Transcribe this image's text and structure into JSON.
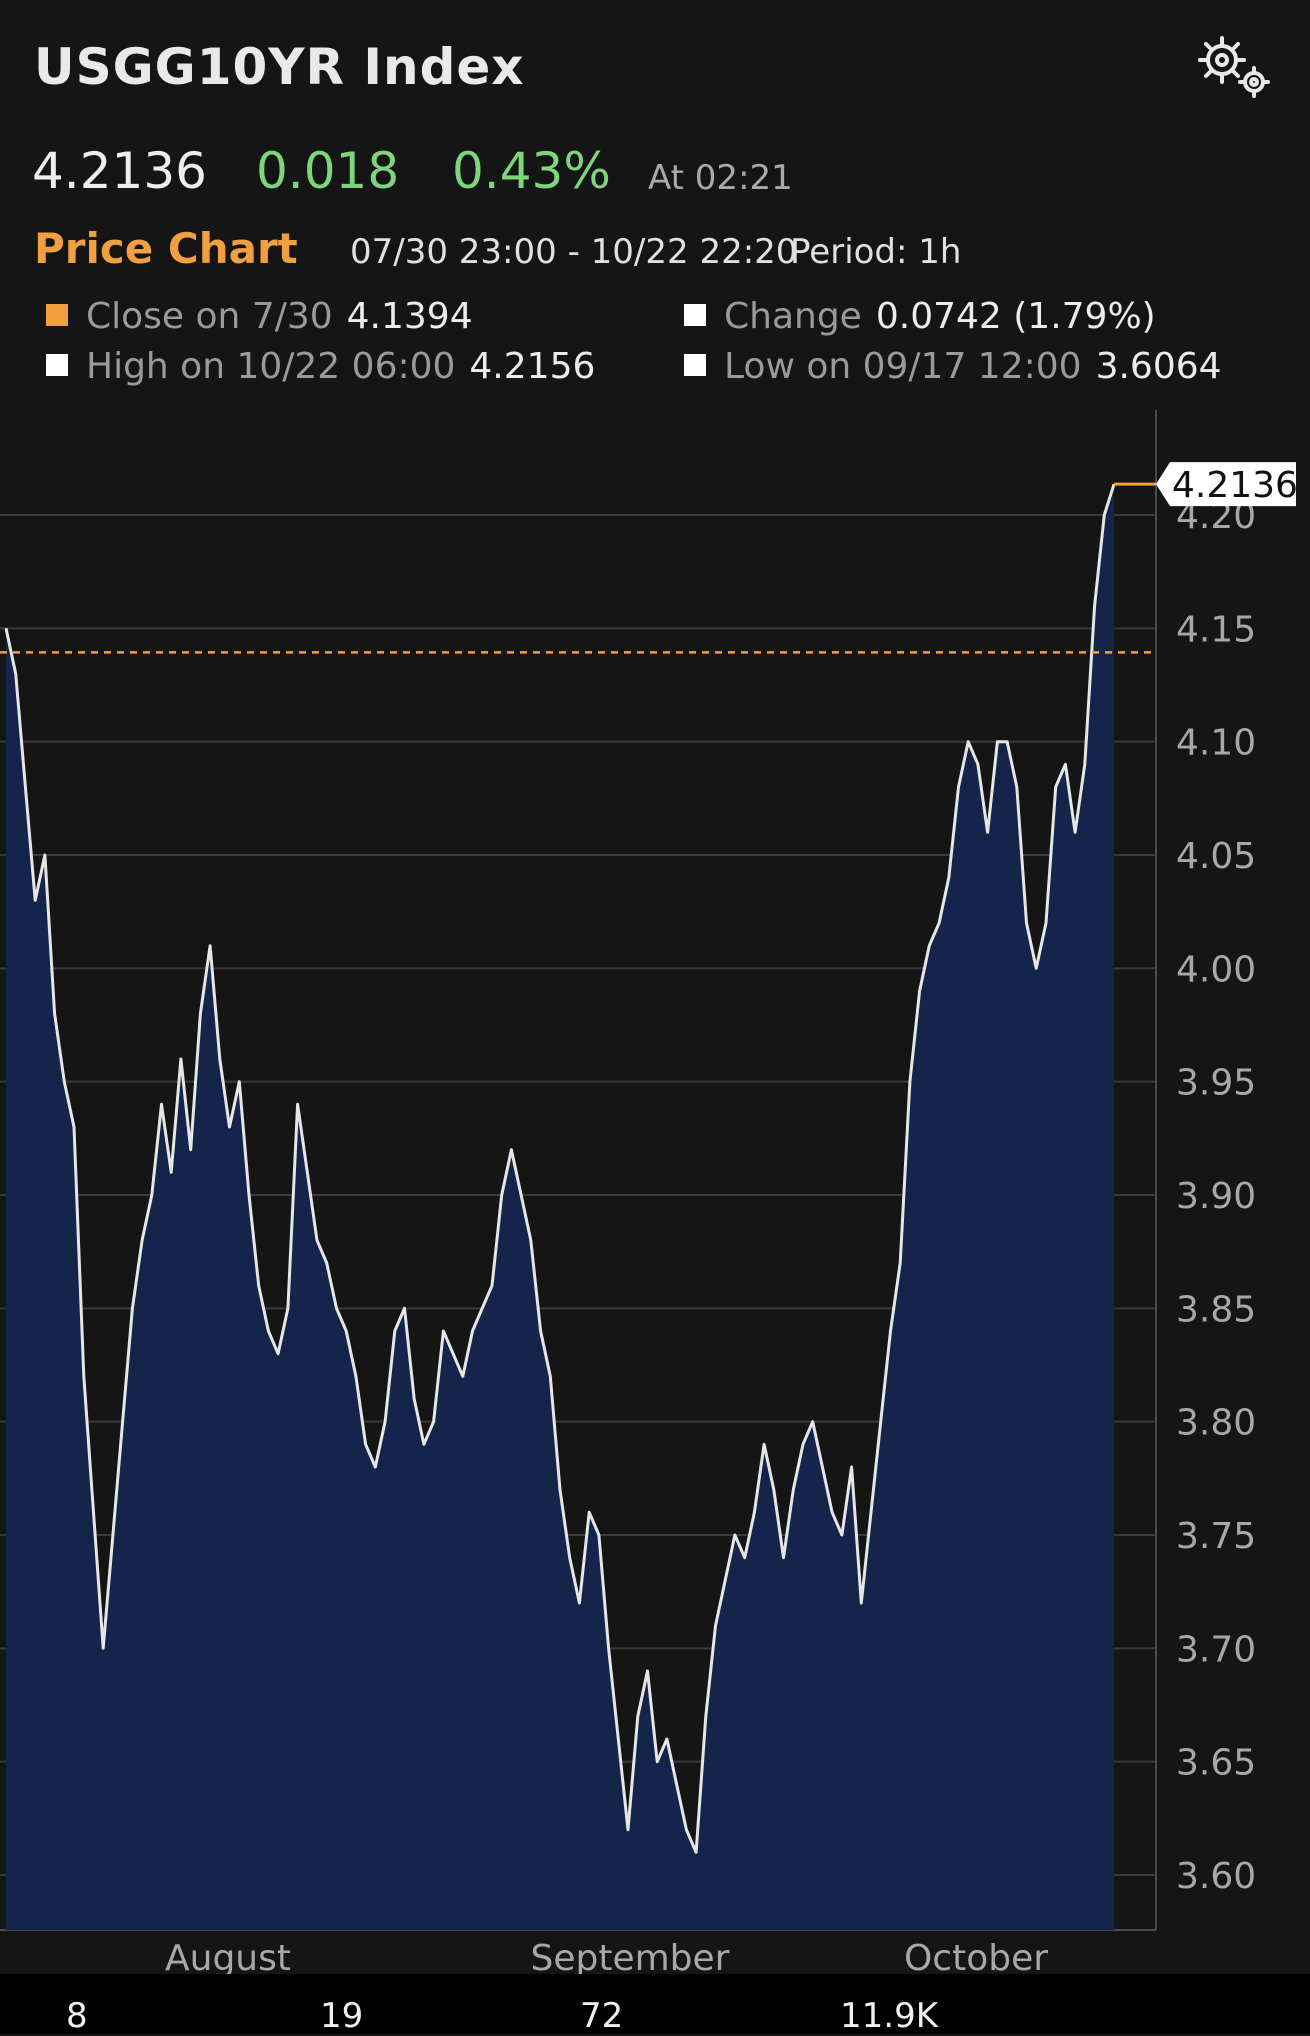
{
  "header": {
    "title": "USGG10YR Index",
    "last": "4.2136",
    "change": "0.018",
    "change_pct": "0.43%",
    "as_of": "At 02:21",
    "chart_title": "Price Chart",
    "range": "07/30 23:00 - 10/22 22:20",
    "period": "Period: 1h"
  },
  "stats": {
    "close_label": "Close on 7/30",
    "close_value": "4.1394",
    "change_label": "Change",
    "change_value": "0.0742 (1.79%)",
    "high_label": "High on 10/22 06:00",
    "high_value": "4.2156",
    "low_label": "Low on 09/17 12:00",
    "low_value": "3.6064"
  },
  "colors": {
    "background": "#151515",
    "line": "#e6e6e6",
    "fill": "#14244a",
    "accent": "#f0a040",
    "positive": "#7ed67a"
  },
  "chart_data": {
    "type": "area",
    "ylim": [
      3.58,
      4.25
    ],
    "yticks": [
      "4.20",
      "4.15",
      "4.10",
      "4.05",
      "4.00",
      "3.95",
      "3.90",
      "3.85",
      "3.80",
      "3.75",
      "3.70",
      "3.65",
      "3.60"
    ],
    "xticks": [
      "August",
      "September",
      "October"
    ],
    "reference_line": 4.1394,
    "last_value_label": "4.2136",
    "last_value": 4.2136,
    "series": [
      {
        "values": [
          4.15,
          4.13,
          4.08,
          4.03,
          4.05,
          3.98,
          3.95,
          3.93,
          3.82,
          3.76,
          3.7,
          3.75,
          3.8,
          3.85,
          3.88,
          3.9,
          3.94,
          3.91,
          3.96,
          3.92,
          3.98,
          4.01,
          3.96,
          3.93,
          3.95,
          3.9,
          3.86,
          3.84,
          3.83,
          3.85,
          3.94,
          3.91,
          3.88,
          3.87,
          3.85,
          3.84,
          3.82,
          3.79,
          3.78,
          3.8,
          3.84,
          3.85,
          3.81,
          3.79,
          3.8,
          3.84,
          3.83,
          3.82,
          3.84,
          3.85,
          3.86,
          3.9,
          3.92,
          3.9,
          3.88,
          3.84,
          3.82,
          3.77,
          3.74,
          3.72,
          3.76,
          3.75,
          3.7,
          3.66,
          3.62,
          3.67,
          3.69,
          3.65,
          3.66,
          3.64,
          3.62,
          3.61,
          3.67,
          3.71,
          3.73,
          3.75,
          3.74,
          3.76,
          3.79,
          3.77,
          3.74,
          3.77,
          3.79,
          3.8,
          3.78,
          3.76,
          3.75,
          3.78,
          3.72,
          3.76,
          3.8,
          3.84,
          3.87,
          3.95,
          3.99,
          4.01,
          4.02,
          4.04,
          4.08,
          4.1,
          4.09,
          4.06,
          4.1,
          4.1,
          4.08,
          4.02,
          4.0,
          4.02,
          4.08,
          4.09,
          4.06,
          4.09,
          4.16,
          4.2,
          4.2136
        ]
      }
    ]
  },
  "bottom_bar": {
    "replies": "8",
    "reposts": "19",
    "likes": "72",
    "views": "11.9K"
  }
}
